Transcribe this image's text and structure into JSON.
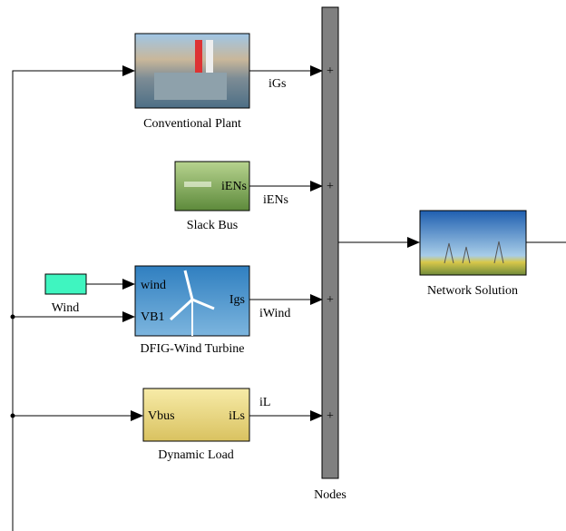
{
  "blocks": {
    "conventional_plant": {
      "label": "Conventional Plant"
    },
    "slack_bus": {
      "label": "Slack Bus",
      "ports": [
        "iENs"
      ]
    },
    "wind_source": {
      "label": "Wind"
    },
    "dfig_wind_turbine": {
      "label": "DFIG-Wind Turbine",
      "ports": [
        "wind",
        "VB1",
        "Igs"
      ]
    },
    "dynamic_load": {
      "label": "Dynamic Load",
      "ports": [
        "Vbus",
        "iLs"
      ]
    },
    "nodes": {
      "label": "Nodes",
      "port_signs": [
        "+",
        "+",
        "+",
        "+"
      ]
    },
    "network_solution": {
      "label": "Network Solution"
    }
  },
  "signals": [
    "iGs",
    "iENs",
    "iWind",
    "iL"
  ]
}
